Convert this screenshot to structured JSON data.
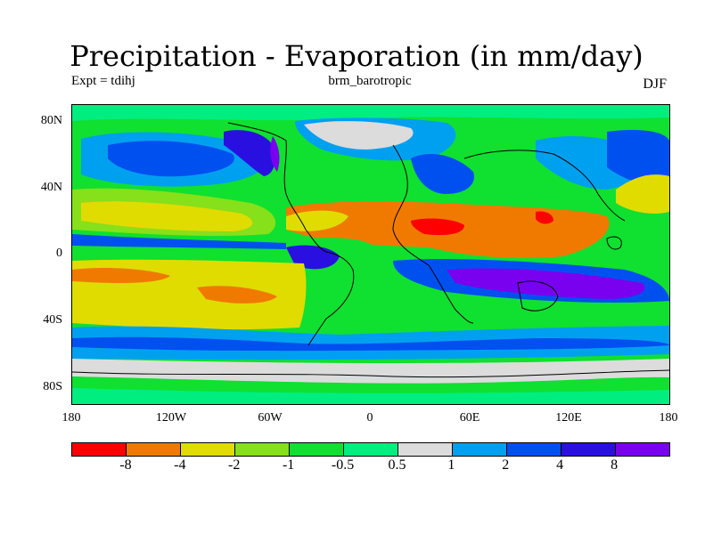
{
  "title": "Precipitation - Evaporation (in mm/day)",
  "left_label": "Expt = tdihj",
  "center_label": "brm_barotropic",
  "right_label": "DJF",
  "y_ticks": [
    "80N",
    "40N",
    "0",
    "40S",
    "80S"
  ],
  "x_ticks": [
    "180",
    "120W",
    "60W",
    "0",
    "60E",
    "120E",
    "180"
  ],
  "colorbar": {
    "colors": [
      "#ff0000",
      "#f07a00",
      "#e0dc00",
      "#86e01a",
      "#10e030",
      "#00ee80",
      "#dcdcdc",
      "#00a0f0",
      "#0050f0",
      "#2a10e0",
      "#7a00f0"
    ],
    "labels": [
      "-8",
      "-4",
      "-2",
      "-1",
      "-0.5",
      "0.5",
      "1",
      "2",
      "4",
      "8"
    ]
  },
  "chart_data": {
    "type": "heatmap",
    "title": "Precipitation - Evaporation (in mm/day)",
    "xlabel": "",
    "ylabel": "",
    "x_range": [
      "180W",
      "180E"
    ],
    "y_range": [
      "90S",
      "90N"
    ],
    "levels": [
      -8,
      -4,
      -2,
      -1,
      -0.5,
      0.5,
      1,
      2,
      4,
      8
    ]
  }
}
